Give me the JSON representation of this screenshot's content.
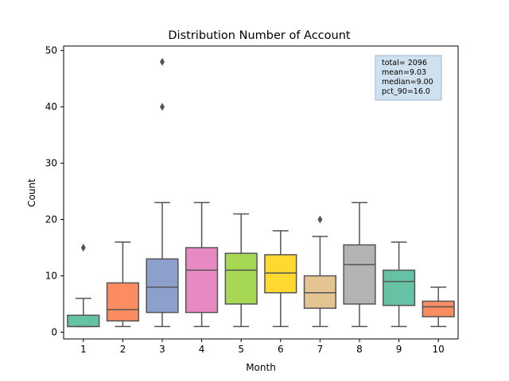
{
  "chart_data": {
    "type": "box",
    "title": "Distribution Number of Account",
    "xlabel": "Month",
    "ylabel": "Count",
    "ylim": [
      -1.2,
      50.8
    ],
    "yticks": [
      0,
      10,
      20,
      30,
      40,
      50
    ],
    "categories": [
      "1",
      "2",
      "3",
      "4",
      "5",
      "6",
      "7",
      "8",
      "9",
      "10"
    ],
    "boxes": [
      {
        "category": "1",
        "whisker_low": 1,
        "q1": 1,
        "median": 1,
        "q3": 3,
        "whisker_high": 6,
        "outliers": [
          15
        ],
        "color": "#66c2a5"
      },
      {
        "category": "2",
        "whisker_low": 1,
        "q1": 2,
        "median": 4,
        "q3": 8.75,
        "whisker_high": 16,
        "outliers": [],
        "color": "#fc8d62"
      },
      {
        "category": "3",
        "whisker_low": 1,
        "q1": 3.5,
        "median": 8,
        "q3": 13,
        "whisker_high": 23,
        "outliers": [
          40,
          48
        ],
        "color": "#8da0cb"
      },
      {
        "category": "4",
        "whisker_low": 1,
        "q1": 3.5,
        "median": 11,
        "q3": 15,
        "whisker_high": 23,
        "outliers": [],
        "color": "#e78ac3"
      },
      {
        "category": "5",
        "whisker_low": 1,
        "q1": 5,
        "median": 11,
        "q3": 14,
        "whisker_high": 21,
        "outliers": [],
        "color": "#a6d854"
      },
      {
        "category": "6",
        "whisker_low": 1,
        "q1": 7,
        "median": 10.5,
        "q3": 13.75,
        "whisker_high": 18,
        "outliers": [],
        "color": "#ffd92f"
      },
      {
        "category": "7",
        "whisker_low": 1,
        "q1": 4.25,
        "median": 7,
        "q3": 10,
        "whisker_high": 17,
        "outliers": [
          20
        ],
        "color": "#e5c494"
      },
      {
        "category": "8",
        "whisker_low": 1,
        "q1": 5,
        "median": 12,
        "q3": 15.5,
        "whisker_high": 23,
        "outliers": [],
        "color": "#b3b3b3"
      },
      {
        "category": "9",
        "whisker_low": 1,
        "q1": 4.75,
        "median": 9,
        "q3": 11,
        "whisker_high": 16,
        "outliers": [],
        "color": "#66c2a5"
      },
      {
        "category": "10",
        "whisker_low": 1,
        "q1": 2.75,
        "median": 4.5,
        "q3": 5.5,
        "whisker_high": 8,
        "outliers": [],
        "color": "#fc8d62"
      }
    ],
    "stats_box": {
      "lines": [
        "total= 2096",
        "mean=9.03",
        "median=9.00",
        "pct_90=16.0"
      ],
      "background": "#cfe0ef",
      "border": "#9db7cf"
    },
    "grid": false,
    "legend": "none"
  }
}
